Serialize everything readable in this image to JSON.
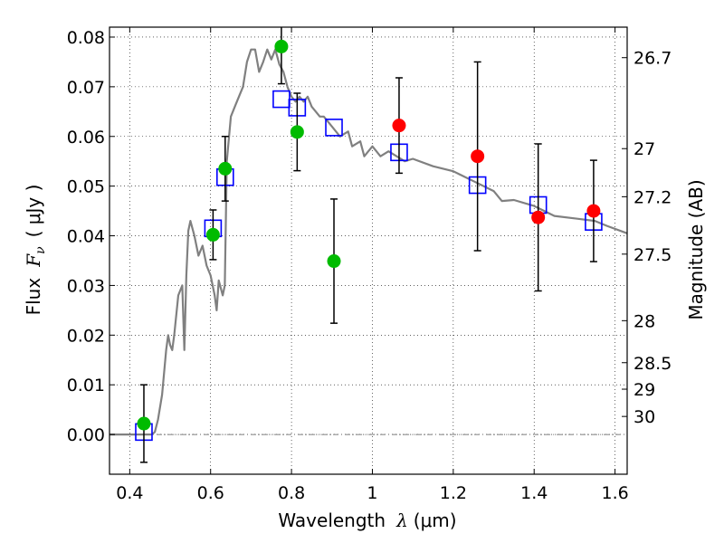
{
  "chart_data": {
    "type": "scatter",
    "xlabel_text": "Wavelength",
    "xlabel_symbol": "λ",
    "xlabel_unit": "(μm)",
    "ylabel_text": "Flux",
    "ylabel_symbol": "F",
    "ylabel_subscript": "ν",
    "ylabel_unit": "( μJy )",
    "y2label": "Magnitude (AB)",
    "xlim": [
      0.35,
      1.63
    ],
    "ylim": [
      -0.008,
      0.082
    ],
    "grid": true,
    "x_ticks": [
      {
        "value": 0.4,
        "label": "0.4"
      },
      {
        "value": 0.6,
        "label": "0.6"
      },
      {
        "value": 0.8,
        "label": "0.8"
      },
      {
        "value": 1.0,
        "label": "1"
      },
      {
        "value": 1.2,
        "label": "1.2"
      },
      {
        "value": 1.4,
        "label": "1.4"
      },
      {
        "value": 1.6,
        "label": "1.6"
      }
    ],
    "y_ticks": [
      {
        "value": 0.0,
        "label": "0.00"
      },
      {
        "value": 0.01,
        "label": "0.01"
      },
      {
        "value": 0.02,
        "label": "0.02"
      },
      {
        "value": 0.03,
        "label": "0.03"
      },
      {
        "value": 0.04,
        "label": "0.04"
      },
      {
        "value": 0.05,
        "label": "0.05"
      },
      {
        "value": 0.06,
        "label": "0.06"
      },
      {
        "value": 0.07,
        "label": "0.07"
      },
      {
        "value": 0.08,
        "label": "0.08"
      }
    ],
    "y2_ticks": [
      {
        "magnitude": 26.7,
        "label": "26.7"
      },
      {
        "magnitude": 27,
        "label": "27"
      },
      {
        "magnitude": 27.2,
        "label": "27.2"
      },
      {
        "magnitude": 27.5,
        "label": "27.5"
      },
      {
        "magnitude": 28,
        "label": "28"
      },
      {
        "magnitude": 28.5,
        "label": "28.5"
      },
      {
        "magnitude": 29,
        "label": "29"
      },
      {
        "magnitude": 30,
        "label": "30"
      }
    ],
    "series": [
      {
        "kind": "line",
        "color": "#808080",
        "points": [
          [
            0.35,
            0.0
          ],
          [
            0.455,
            0.0
          ],
          [
            0.462,
            0.0005
          ],
          [
            0.47,
            0.003
          ],
          [
            0.48,
            0.008
          ],
          [
            0.49,
            0.017
          ],
          [
            0.495,
            0.02
          ],
          [
            0.5,
            0.018
          ],
          [
            0.505,
            0.017
          ],
          [
            0.51,
            0.02
          ],
          [
            0.52,
            0.028
          ],
          [
            0.53,
            0.03
          ],
          [
            0.535,
            0.017
          ],
          [
            0.54,
            0.032
          ],
          [
            0.545,
            0.041
          ],
          [
            0.55,
            0.043
          ],
          [
            0.56,
            0.04
          ],
          [
            0.57,
            0.036
          ],
          [
            0.58,
            0.038
          ],
          [
            0.59,
            0.034
          ],
          [
            0.6,
            0.032
          ],
          [
            0.61,
            0.028
          ],
          [
            0.615,
            0.025
          ],
          [
            0.62,
            0.031
          ],
          [
            0.63,
            0.028
          ],
          [
            0.635,
            0.03
          ],
          [
            0.64,
            0.055
          ],
          [
            0.65,
            0.064
          ],
          [
            0.66,
            0.066
          ],
          [
            0.67,
            0.068
          ],
          [
            0.68,
            0.07
          ],
          [
            0.69,
            0.075
          ],
          [
            0.7,
            0.0775
          ],
          [
            0.71,
            0.0775
          ],
          [
            0.72,
            0.073
          ],
          [
            0.73,
            0.075
          ],
          [
            0.74,
            0.0775
          ],
          [
            0.75,
            0.0755
          ],
          [
            0.76,
            0.0775
          ],
          [
            0.77,
            0.0745
          ],
          [
            0.78,
            0.073
          ],
          [
            0.79,
            0.07
          ],
          [
            0.8,
            0.068
          ],
          [
            0.81,
            0.067
          ],
          [
            0.82,
            0.068
          ],
          [
            0.83,
            0.067
          ],
          [
            0.84,
            0.068
          ],
          [
            0.85,
            0.066
          ],
          [
            0.86,
            0.065
          ],
          [
            0.87,
            0.064
          ],
          [
            0.88,
            0.064
          ],
          [
            0.9,
            0.062
          ],
          [
            0.92,
            0.06
          ],
          [
            0.94,
            0.061
          ],
          [
            0.95,
            0.058
          ],
          [
            0.97,
            0.059
          ],
          [
            0.98,
            0.056
          ],
          [
            1.0,
            0.058
          ],
          [
            1.02,
            0.056
          ],
          [
            1.04,
            0.057
          ],
          [
            1.06,
            0.056
          ],
          [
            1.08,
            0.055
          ],
          [
            1.1,
            0.0555
          ],
          [
            1.15,
            0.054
          ],
          [
            1.2,
            0.053
          ],
          [
            1.25,
            0.051
          ],
          [
            1.3,
            0.049
          ],
          [
            1.32,
            0.047
          ],
          [
            1.35,
            0.0472
          ],
          [
            1.4,
            0.046
          ],
          [
            1.45,
            0.044
          ],
          [
            1.5,
            0.0435
          ],
          [
            1.55,
            0.043
          ],
          [
            1.58,
            0.042
          ],
          [
            1.63,
            0.0405
          ]
        ]
      },
      {
        "kind": "open-square",
        "color": "#0000ff",
        "points": [
          [
            0.435,
            0.0005
          ],
          [
            0.606,
            0.0415
          ],
          [
            0.636,
            0.0518
          ],
          [
            0.775,
            0.0675
          ],
          [
            0.814,
            0.0658
          ],
          [
            0.905,
            0.0618
          ],
          [
            1.066,
            0.0568
          ],
          [
            1.26,
            0.0502
          ],
          [
            1.41,
            0.0462
          ],
          [
            1.547,
            0.0428
          ]
        ]
      },
      {
        "kind": "filled-circle",
        "color": "#00bb00",
        "points": [
          [
            0.435,
            0.0022
          ],
          [
            0.606,
            0.0402
          ],
          [
            0.636,
            0.0535
          ],
          [
            0.775,
            0.0781
          ],
          [
            0.814,
            0.0609
          ],
          [
            0.905,
            0.0349
          ]
        ],
        "errors": [
          0.0078,
          0.005,
          0.0065,
          0.0075,
          0.0078,
          0.0125
        ]
      },
      {
        "kind": "filled-circle",
        "color": "#ff0000",
        "points": [
          [
            1.066,
            0.0622
          ],
          [
            1.26,
            0.056
          ],
          [
            1.41,
            0.0437
          ],
          [
            1.547,
            0.045
          ]
        ],
        "errors": [
          0.0096,
          0.019,
          0.0148,
          0.0102
        ]
      }
    ]
  }
}
